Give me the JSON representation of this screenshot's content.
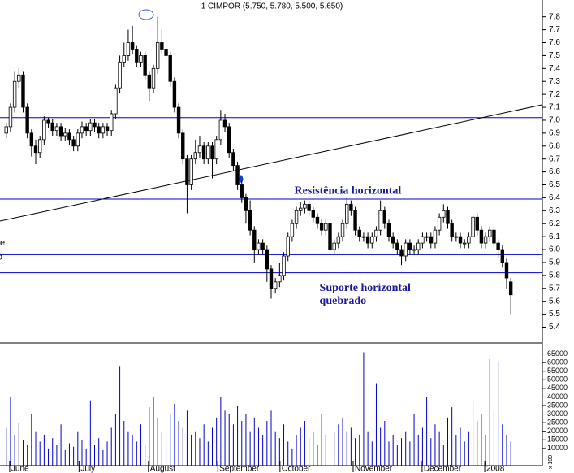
{
  "chart_data": {
    "type": "candlestick",
    "title": "1 CIMPOR (5.750, 5.780, 5.500, 5.650)",
    "annotations": [
      {
        "text": "Resistência horizontal",
        "x": 70,
        "y": 6.45
      },
      {
        "text": "Suporte horizontal",
        "x": 76,
        "y": 5.7
      },
      {
        "text": "quebrado",
        "x": 76,
        "y": 5.6
      },
      {
        "text": "te",
        "x": -0.6,
        "y": 6.05
      },
      {
        "text": "o",
        "x": -0.6,
        "y": 5.94
      }
    ],
    "xlim": [
      0,
      129
    ],
    "xticks": [
      {
        "value": 2.3,
        "label": "June"
      },
      {
        "value": 18.8,
        "label": "July"
      },
      {
        "value": 35.3,
        "label": "August"
      },
      {
        "value": 51.8,
        "label": "September"
      },
      {
        "value": 66.6,
        "label": "October"
      },
      {
        "value": 84,
        "label": "November"
      },
      {
        "value": 100.4,
        "label": "December"
      },
      {
        "value": 115.3,
        "label": "2008"
      }
    ],
    "ylim": [
      5.29,
      7.93
    ],
    "yticks": [
      5.4,
      5.5,
      5.6,
      5.7,
      5.8,
      5.9,
      {
        "value": 6.0,
        "label": "6.0"
      },
      6.1,
      6.2,
      6.3,
      6.4,
      6.5,
      6.6,
      6.7,
      6.8,
      6.9,
      {
        "value": 7.0,
        "label": "7.0"
      },
      7.1,
      7.2,
      7.3,
      7.4,
      7.5,
      7.6,
      7.7,
      7.8
    ],
    "hlines": [
      7.02,
      6.39,
      5.96,
      5.82
    ],
    "trendline": {
      "x": [
        0,
        129
      ],
      "y": [
        6.22,
        7.12
      ]
    },
    "line_color": "#0000cc",
    "ohlc": [
      [
        6.9,
        6.98,
        6.86,
        6.95
      ],
      [
        6.95,
        7.13,
        6.91,
        7.1
      ],
      [
        7.1,
        7.38,
        7.06,
        7.3
      ],
      [
        7.3,
        7.4,
        7.25,
        7.35
      ],
      [
        7.35,
        7.38,
        7.06,
        7.1
      ],
      [
        7.1,
        7.13,
        6.86,
        6.9
      ],
      [
        6.9,
        6.93,
        6.72,
        6.8
      ],
      [
        6.8,
        6.85,
        6.66,
        6.75
      ],
      [
        6.75,
        6.88,
        6.71,
        6.85
      ],
      [
        6.85,
        7.03,
        6.81,
        7.0
      ],
      [
        7.0,
        7.02,
        6.94,
        6.98
      ],
      [
        6.98,
        7.01,
        6.88,
        6.92
      ],
      [
        6.92,
        6.98,
        6.88,
        6.95
      ],
      [
        6.95,
        6.98,
        6.84,
        6.88
      ],
      [
        6.88,
        6.94,
        6.84,
        6.9
      ],
      [
        6.9,
        6.93,
        6.81,
        6.85
      ],
      [
        6.85,
        6.88,
        6.76,
        6.8
      ],
      [
        6.8,
        6.93,
        6.76,
        6.9
      ],
      [
        6.9,
        6.99,
        6.86,
        6.95
      ],
      [
        6.95,
        6.98,
        6.88,
        6.92
      ],
      [
        6.92,
        7.01,
        6.88,
        6.98
      ],
      [
        6.98,
        7.01,
        6.91,
        6.95
      ],
      [
        6.95,
        6.98,
        6.86,
        6.9
      ],
      [
        6.9,
        6.98,
        6.86,
        6.95
      ],
      [
        6.95,
        6.98,
        6.88,
        6.92
      ],
      [
        6.92,
        7.08,
        6.88,
        7.05
      ],
      [
        7.05,
        7.28,
        7.01,
        7.25
      ],
      [
        7.25,
        7.5,
        7.21,
        7.45
      ],
      [
        7.45,
        7.6,
        7.41,
        7.5
      ],
      [
        7.5,
        7.7,
        7.46,
        7.6
      ],
      [
        7.6,
        7.73,
        7.51,
        7.55
      ],
      [
        7.55,
        7.58,
        7.41,
        7.45
      ],
      [
        7.45,
        7.53,
        7.41,
        7.5
      ],
      [
        7.5,
        7.53,
        7.31,
        7.35
      ],
      [
        7.35,
        7.38,
        7.15,
        7.25
      ],
      [
        7.25,
        7.43,
        7.21,
        7.4
      ],
      [
        7.4,
        7.8,
        7.36,
        7.6
      ],
      [
        7.6,
        7.7,
        7.51,
        7.55
      ],
      [
        7.55,
        7.58,
        7.46,
        7.5
      ],
      [
        7.5,
        7.53,
        7.26,
        7.3
      ],
      [
        7.3,
        7.33,
        7.06,
        7.1
      ],
      [
        7.1,
        7.13,
        6.86,
        6.9
      ],
      [
        6.9,
        6.93,
        6.66,
        6.7
      ],
      [
        6.7,
        6.73,
        6.28,
        6.5
      ],
      [
        6.5,
        6.73,
        6.46,
        6.7
      ],
      [
        6.7,
        6.85,
        6.66,
        6.75
      ],
      [
        6.75,
        6.88,
        6.71,
        6.8
      ],
      [
        6.8,
        6.83,
        6.66,
        6.7
      ],
      [
        6.7,
        6.83,
        6.66,
        6.8
      ],
      [
        6.8,
        6.83,
        6.55,
        6.7
      ],
      [
        6.7,
        6.88,
        6.66,
        6.85
      ],
      [
        6.85,
        7.08,
        6.81,
        7.0
      ],
      [
        7.0,
        7.05,
        6.91,
        6.95
      ],
      [
        6.95,
        6.98,
        6.71,
        6.75
      ],
      [
        6.75,
        6.78,
        6.61,
        6.65
      ],
      [
        6.65,
        6.68,
        6.46,
        6.5
      ],
      [
        6.5,
        6.53,
        6.36,
        6.4
      ],
      [
        6.4,
        6.43,
        6.2,
        6.3
      ],
      [
        6.3,
        6.38,
        6.11,
        6.15
      ],
      [
        6.15,
        6.18,
        5.9,
        6.0
      ],
      [
        6.0,
        6.08,
        5.96,
        6.05
      ],
      [
        6.05,
        6.08,
        5.96,
        6.0
      ],
      [
        6.0,
        6.03,
        5.75,
        5.85
      ],
      [
        5.85,
        5.88,
        5.62,
        5.7
      ],
      [
        5.7,
        5.78,
        5.66,
        5.75
      ],
      [
        5.75,
        5.9,
        5.71,
        5.8
      ],
      [
        5.8,
        5.98,
        5.76,
        5.95
      ],
      [
        5.95,
        6.13,
        5.91,
        6.1
      ],
      [
        6.1,
        6.23,
        6.06,
        6.2
      ],
      [
        6.2,
        6.33,
        6.16,
        6.3
      ],
      [
        6.3,
        6.37,
        6.26,
        6.32
      ],
      [
        6.32,
        6.38,
        6.28,
        6.35
      ],
      [
        6.35,
        6.38,
        6.26,
        6.3
      ],
      [
        6.3,
        6.33,
        6.21,
        6.25
      ],
      [
        6.25,
        6.28,
        6.16,
        6.2
      ],
      [
        6.2,
        6.23,
        6.11,
        6.15
      ],
      [
        6.15,
        6.23,
        6.11,
        6.2
      ],
      [
        6.2,
        6.23,
        5.96,
        6.0
      ],
      [
        6.0,
        6.08,
        5.96,
        6.05
      ],
      [
        6.05,
        6.13,
        6.01,
        6.1
      ],
      [
        6.1,
        6.23,
        6.06,
        6.2
      ],
      [
        6.2,
        6.4,
        6.16,
        6.35
      ],
      [
        6.35,
        6.38,
        6.26,
        6.3
      ],
      [
        6.3,
        6.33,
        6.11,
        6.15
      ],
      [
        6.15,
        6.18,
        6.06,
        6.1
      ],
      [
        6.1,
        6.13,
        6.06,
        6.1
      ],
      [
        6.1,
        6.13,
        6.01,
        6.05
      ],
      [
        6.05,
        6.13,
        6.01,
        6.1
      ],
      [
        6.1,
        6.18,
        6.06,
        6.15
      ],
      [
        6.15,
        6.38,
        6.11,
        6.3
      ],
      [
        6.3,
        6.33,
        6.16,
        6.2
      ],
      [
        6.2,
        6.23,
        6.06,
        6.1
      ],
      [
        6.1,
        6.13,
        6.01,
        6.05
      ],
      [
        6.05,
        6.08,
        5.96,
        6.0
      ],
      [
        6.0,
        6.03,
        5.88,
        5.95
      ],
      [
        5.95,
        6.08,
        5.91,
        6.05
      ],
      [
        6.05,
        6.08,
        5.96,
        6.0
      ],
      [
        6.0,
        6.03,
        5.96,
        6.0
      ],
      [
        6.0,
        6.08,
        5.96,
        6.05
      ],
      [
        6.05,
        6.13,
        6.01,
        6.1
      ],
      [
        6.1,
        6.13,
        6.06,
        6.1
      ],
      [
        6.1,
        6.13,
        6.01,
        6.05
      ],
      [
        6.05,
        6.18,
        6.01,
        6.15
      ],
      [
        6.15,
        6.28,
        6.11,
        6.25
      ],
      [
        6.25,
        6.35,
        6.21,
        6.3
      ],
      [
        6.3,
        6.33,
        6.16,
        6.2
      ],
      [
        6.2,
        6.23,
        6.06,
        6.1
      ],
      [
        6.1,
        6.13,
        6.06,
        6.1
      ],
      [
        6.1,
        6.13,
        6.01,
        6.05
      ],
      [
        6.05,
        6.08,
        6.01,
        6.05
      ],
      [
        6.05,
        6.13,
        6.01,
        6.1
      ],
      [
        6.1,
        6.28,
        6.06,
        6.25
      ],
      [
        6.25,
        6.28,
        6.11,
        6.15
      ],
      [
        6.15,
        6.18,
        6.01,
        6.05
      ],
      [
        6.05,
        6.13,
        6.01,
        6.1
      ],
      [
        6.1,
        6.18,
        6.06,
        6.15
      ],
      [
        6.15,
        6.18,
        6.01,
        6.05
      ],
      [
        6.05,
        6.08,
        5.93,
        6.0
      ],
      [
        6.0,
        6.03,
        5.86,
        5.9
      ],
      [
        5.9,
        5.93,
        5.7,
        5.78
      ],
      [
        5.75,
        5.78,
        5.5,
        5.65
      ]
    ],
    "volume": {
      "label": "x 100",
      "color": "#0000cc",
      "ylim": [
        0,
        70000
      ],
      "yticks": [
        10000,
        15000,
        20000,
        25000,
        30000,
        35000,
        40000,
        45000,
        50000,
        55000,
        60000,
        65000
      ],
      "values": [
        22000,
        40000,
        18000,
        25000,
        15000,
        12000,
        30000,
        20000,
        14000,
        18000,
        10000,
        16000,
        12000,
        24000,
        9000,
        13000,
        11000,
        20000,
        15000,
        10000,
        38000,
        12000,
        16000,
        9000,
        14000,
        22000,
        30000,
        58000,
        26000,
        20000,
        18000,
        14000,
        24000,
        12000,
        34000,
        40000,
        28000,
        20000,
        16000,
        30000,
        36000,
        26000,
        22000,
        32000,
        18000,
        20000,
        16000,
        24000,
        14000,
        22000,
        28000,
        40000,
        32000,
        30000,
        24000,
        35000,
        26000,
        30000,
        20000,
        28000,
        22000,
        18000,
        26000,
        32000,
        20000,
        16000,
        24000,
        14000,
        10000,
        18000,
        22000,
        26000,
        16000,
        20000,
        12000,
        30000,
        18000,
        14000,
        20000,
        24000,
        28000,
        20000,
        22000,
        16000,
        18000,
        66000,
        20000,
        14000,
        48000,
        22000,
        26000,
        14000,
        18000,
        12000,
        16000,
        20000,
        14000,
        30000,
        18000,
        22000,
        40000,
        16000,
        24000,
        20000,
        12000,
        28000,
        34000,
        18000,
        22000,
        14000,
        20000,
        38000,
        26000,
        30000,
        18000,
        62000,
        32000,
        61000,
        24000,
        18000,
        14000
      ]
    }
  }
}
